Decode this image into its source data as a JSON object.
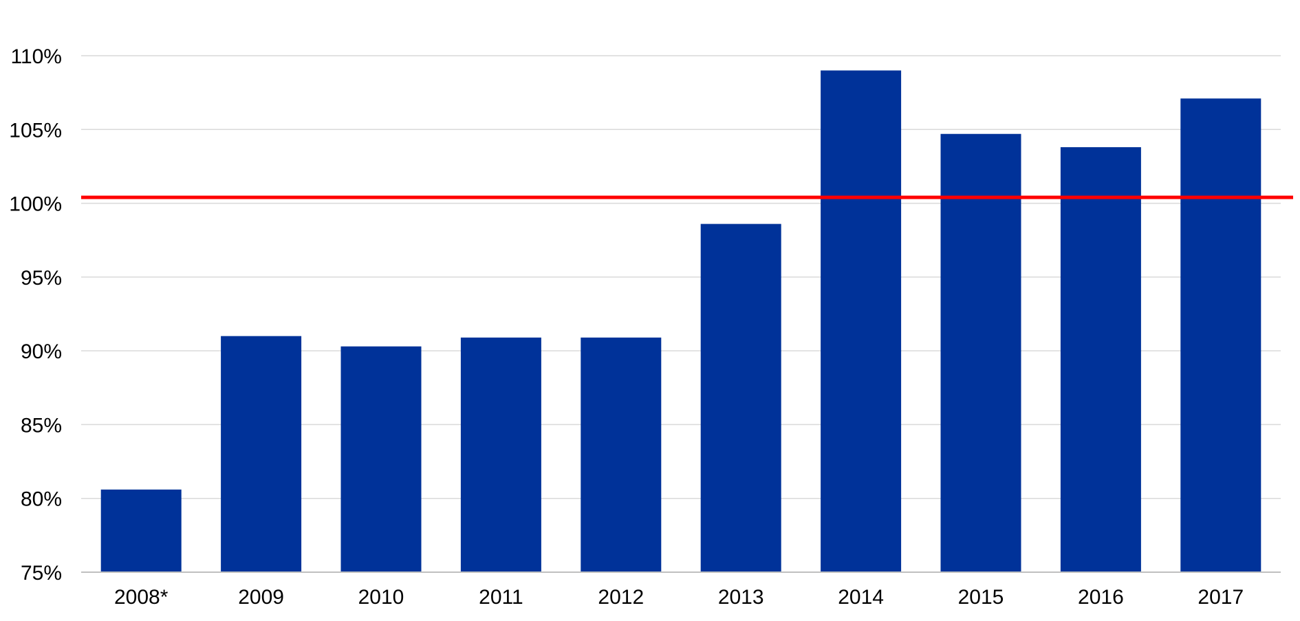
{
  "chart_data": {
    "type": "bar",
    "categories": [
      "2008*",
      "2009",
      "2010",
      "2011",
      "2012",
      "2013",
      "2014",
      "2015",
      "2016",
      "2017"
    ],
    "values": [
      80.6,
      91.0,
      90.3,
      90.9,
      90.9,
      98.6,
      109.0,
      104.7,
      103.8,
      107.1
    ],
    "ylim": [
      75,
      110
    ],
    "yticks": [
      75,
      80,
      85,
      90,
      95,
      100,
      105,
      110
    ],
    "ytick_labels": [
      "75%",
      "80%",
      "85%",
      "90%",
      "95%",
      "100%",
      "105%",
      "110%"
    ],
    "reference_line": 100.4,
    "grid": true,
    "title": "",
    "xlabel": "",
    "ylabel": ""
  },
  "colors": {
    "bar": "#003299",
    "reference_line": "#ff0000",
    "grid": "#d9d9d9",
    "axis": "#bfbfbf"
  }
}
